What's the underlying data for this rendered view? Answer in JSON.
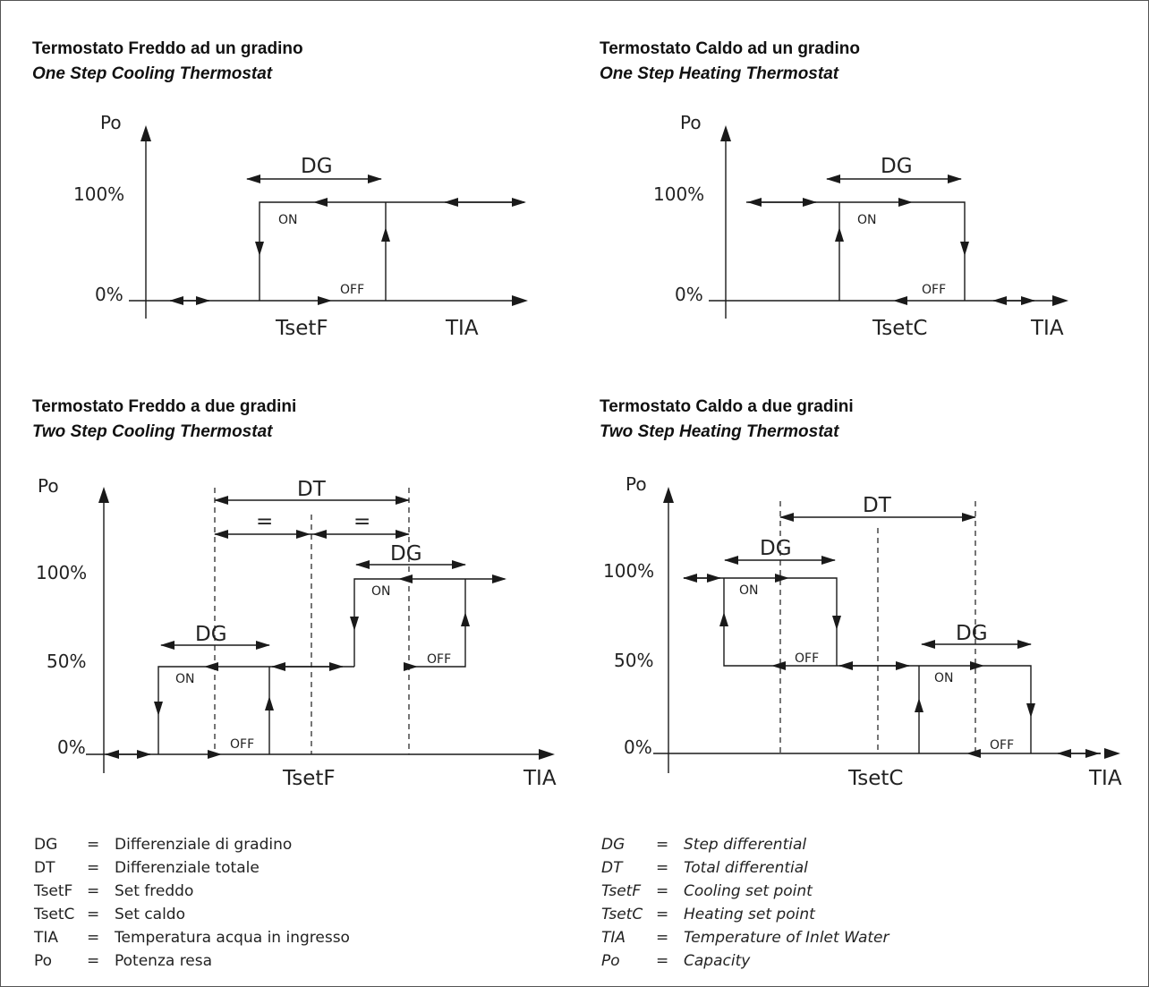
{
  "panels": {
    "p1": {
      "title": "Termostato Freddo ad un gradino",
      "subtitle": "One Step Cooling Thermostat",
      "y_label": "Po",
      "y100": "100%",
      "y0": "0%",
      "x_label": "TIA",
      "set_label": "TsetF",
      "dg": "DG",
      "on": "ON",
      "off": "OFF"
    },
    "p2": {
      "title": "Termostato Caldo ad un gradino",
      "subtitle": "One Step Heating Thermostat",
      "y_label": "Po",
      "y100": "100%",
      "y0": "0%",
      "x_label": "TIA",
      "set_label": "TsetC",
      "dg": "DG",
      "on": "ON",
      "off": "OFF"
    },
    "p3": {
      "title": "Termostato Freddo a due gradini",
      "subtitle": "Two Step Cooling Thermostat",
      "y_label": "Po",
      "y100": "100%",
      "y50": "50%",
      "y0": "0%",
      "x_label": "TIA",
      "set_label": "TsetF",
      "dt": "DT",
      "eq": "=",
      "dg": "DG",
      "on": "ON",
      "off": "OFF"
    },
    "p4": {
      "title": "Termostato Caldo a due gradini",
      "subtitle": "Two Step Heating Thermostat",
      "y_label": "Po",
      "y100": "100%",
      "y50": "50%",
      "y0": "0%",
      "x_label": "TIA",
      "set_label": "TsetC",
      "dt": "DT",
      "dg": "DG",
      "on": "ON",
      "off": "OFF"
    }
  },
  "legend_it": [
    {
      "key": "DG",
      "eq": "=",
      "desc": "Differenziale di gradino"
    },
    {
      "key": "DT",
      "eq": "=",
      "desc": "Differenziale totale"
    },
    {
      "key": "TsetF",
      "eq": "=",
      "desc": "Set freddo"
    },
    {
      "key": "TsetC",
      "eq": "=",
      "desc": "Set caldo"
    },
    {
      "key": "TIA",
      "eq": "=",
      "desc": "Temperatura acqua in ingresso"
    },
    {
      "key": "Po",
      "eq": "=",
      "desc": "Potenza resa"
    }
  ],
  "legend_en": [
    {
      "key": "DG",
      "eq": "=",
      "desc": "Step differential"
    },
    {
      "key": "DT",
      "eq": "=",
      "desc": "Total differential"
    },
    {
      "key": "TsetF",
      "eq": "=",
      "desc": "Cooling set point"
    },
    {
      "key": "TsetC",
      "eq": "=",
      "desc": "Heating set point"
    },
    {
      "key": "TIA",
      "eq": "=",
      "desc": "Temperature of Inlet Water"
    },
    {
      "key": "Po",
      "eq": "=",
      "desc": "Capacity"
    }
  ]
}
